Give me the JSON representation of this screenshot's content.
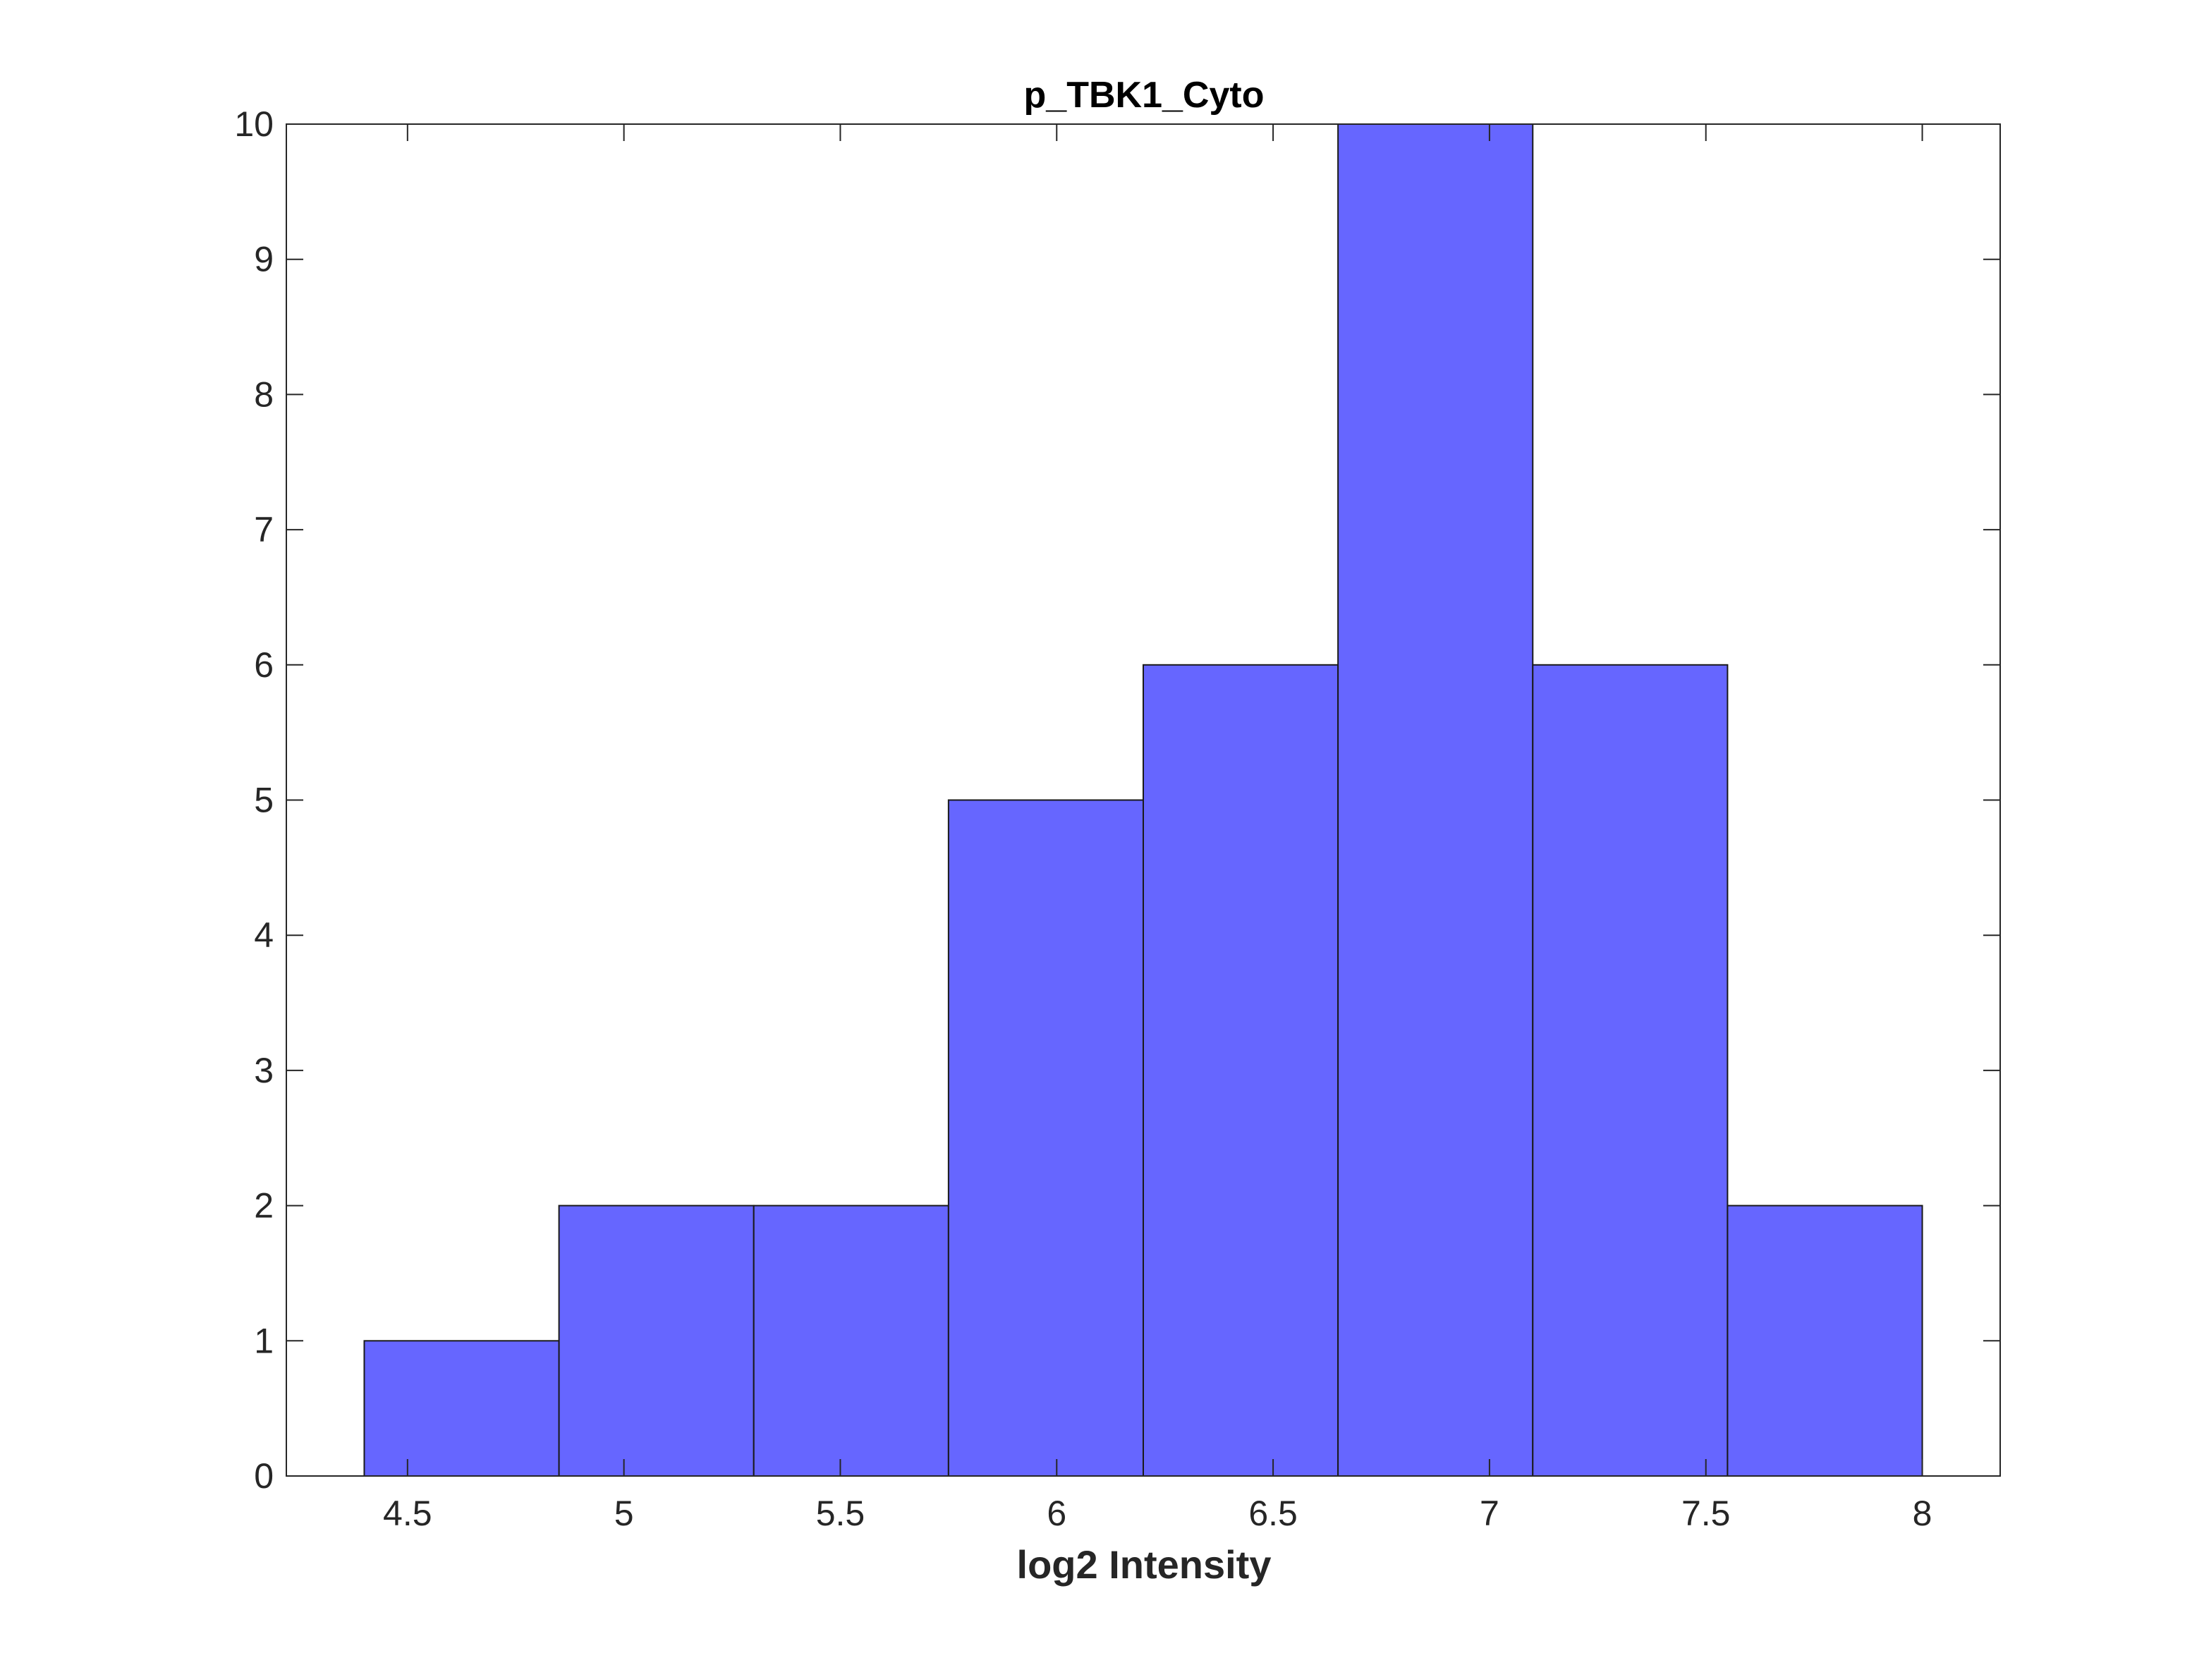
{
  "chart_data": {
    "type": "bar",
    "title": "p_TBK1_Cyto",
    "xlabel": "log2 Intensity",
    "ylabel": "",
    "xlim": [
      4.22,
      8.18
    ],
    "ylim": [
      0,
      10
    ],
    "xticks": [
      "4.5",
      "5",
      "5.5",
      "6",
      "6.5",
      "7",
      "7.5",
      "8"
    ],
    "yticks": [
      "0",
      "1",
      "2",
      "3",
      "4",
      "5",
      "6",
      "7",
      "8",
      "9",
      "10"
    ],
    "bins": [
      {
        "x0": 4.4,
        "x1": 4.85,
        "count": 1
      },
      {
        "x0": 4.85,
        "x1": 5.3,
        "count": 2
      },
      {
        "x0": 5.3,
        "x1": 5.75,
        "count": 2
      },
      {
        "x0": 5.75,
        "x1": 6.2,
        "count": 5
      },
      {
        "x0": 6.2,
        "x1": 6.65,
        "count": 6
      },
      {
        "x0": 6.65,
        "x1": 7.1,
        "count": 10
      },
      {
        "x0": 7.1,
        "x1": 7.55,
        "count": 6
      },
      {
        "x0": 7.55,
        "x1": 8.0,
        "count": 2
      }
    ],
    "bar_color": "#6666ff",
    "edge_color": "#1a1a1a",
    "grid": false,
    "legend": "none"
  }
}
